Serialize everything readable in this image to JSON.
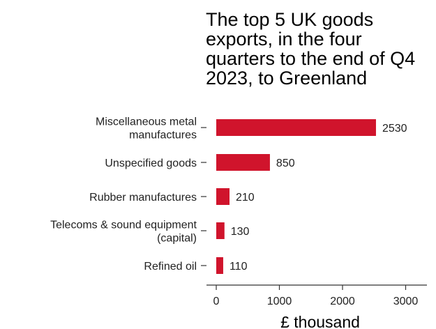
{
  "chart_data": {
    "type": "bar",
    "orientation": "horizontal",
    "title": "The top 5 UK goods exports, in the four quarters to the end of Q4 2023, to Greenland",
    "xlabel": "£ thousand",
    "ylabel": "",
    "xlim": [
      0,
      3400
    ],
    "xticks": [
      0,
      1000,
      2000,
      3000
    ],
    "grid": false,
    "categories": [
      [
        "Miscellaneous metal",
        "manufactures"
      ],
      [
        "Unspecified goods"
      ],
      [
        "Rubber manufactures"
      ],
      [
        "Telecoms & sound equipment",
        "(capital)"
      ],
      [
        "Refined oil"
      ]
    ],
    "values": [
      2530,
      850,
      210,
      130,
      110
    ],
    "bar_color": "#d0142c"
  }
}
